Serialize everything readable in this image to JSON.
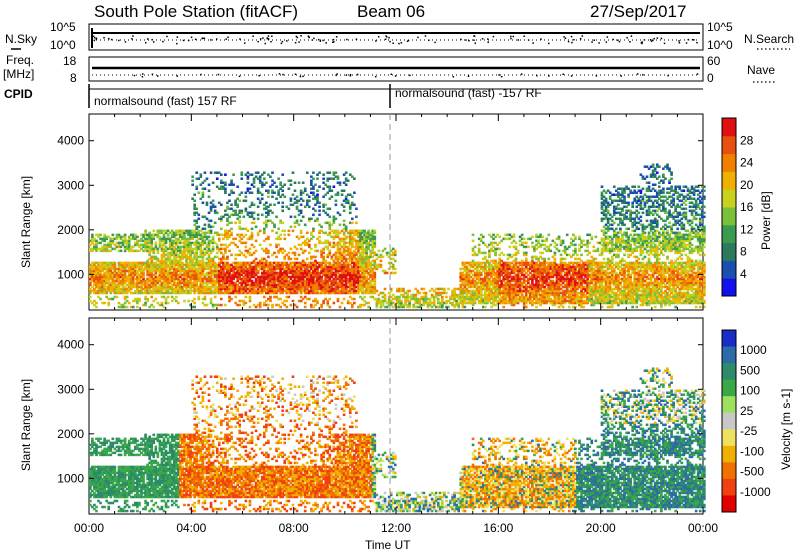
{
  "header": {
    "station": "South Pole Station (fitACF)",
    "beam": "Beam 06",
    "date": "27/Sep/2017"
  },
  "params": {
    "nsky_label": "N.Sky",
    "nsky_ticks": [
      "10^5",
      "10^0"
    ],
    "nsearch_label": "N.Search",
    "nsearch_ticks": [
      "10^5",
      "10^0"
    ],
    "freq_label_1": "Freq.",
    "freq_label_2": "[MHz]",
    "freq_ticks": [
      "18",
      "8"
    ],
    "nave_label": "Nave",
    "nave_ticks": [
      "60",
      "0"
    ],
    "cpid_label": "CPID",
    "cpid_1": "normalsound (fast) 157 RF",
    "cpid_2": "normalsound (fast) -157 RF",
    "cpid_switch_time": "12:00"
  },
  "chart_data": [
    {
      "type": "heatmap",
      "name": "power",
      "ylabel": "Slant Range [km]",
      "xlabel": "Time UT",
      "x_ticks": [
        "00:00",
        "04:00",
        "08:00",
        "12:00",
        "16:00",
        "20:00",
        "00:00"
      ],
      "y_ticks": [
        1000,
        2000,
        3000,
        4000
      ],
      "ylim": [
        200,
        4600
      ],
      "xlim_hours": [
        0,
        24
      ],
      "colorbar": {
        "label": "Power [dB]",
        "ticks": [
          4,
          8,
          12,
          16,
          20,
          24,
          28
        ],
        "range": [
          0,
          32
        ],
        "colors": [
          "#1111ee",
          "#1a4fb0",
          "#2c7a5e",
          "#3b9a52",
          "#7cc03a",
          "#c8d020",
          "#f0b000",
          "#f08000",
          "#e85010",
          "#e01010"
        ]
      }
    },
    {
      "type": "heatmap",
      "name": "velocity",
      "ylabel": "Slant Range [km]",
      "xlabel": "Time UT",
      "x_ticks": [
        "00:00",
        "04:00",
        "08:00",
        "12:00",
        "16:00",
        "20:00",
        "00:00"
      ],
      "y_ticks": [
        1000,
        2000,
        3000,
        4000
      ],
      "ylim": [
        200,
        4600
      ],
      "xlim_hours": [
        0,
        24
      ],
      "colorbar": {
        "label": "Velocity [m s-1]",
        "ticks": [
          "1000",
          "500",
          "100",
          "25",
          "-25",
          "-100",
          "-500",
          "-1000"
        ],
        "colors": [
          "#1a2cc8",
          "#2d6aa8",
          "#2d8a6a",
          "#3aa848",
          "#9ee060",
          "#c8c8c8",
          "#f0e060",
          "#f0b000",
          "#f07000",
          "#f04010",
          "#e00000"
        ]
      }
    }
  ],
  "xaxis_title": "Time UT"
}
